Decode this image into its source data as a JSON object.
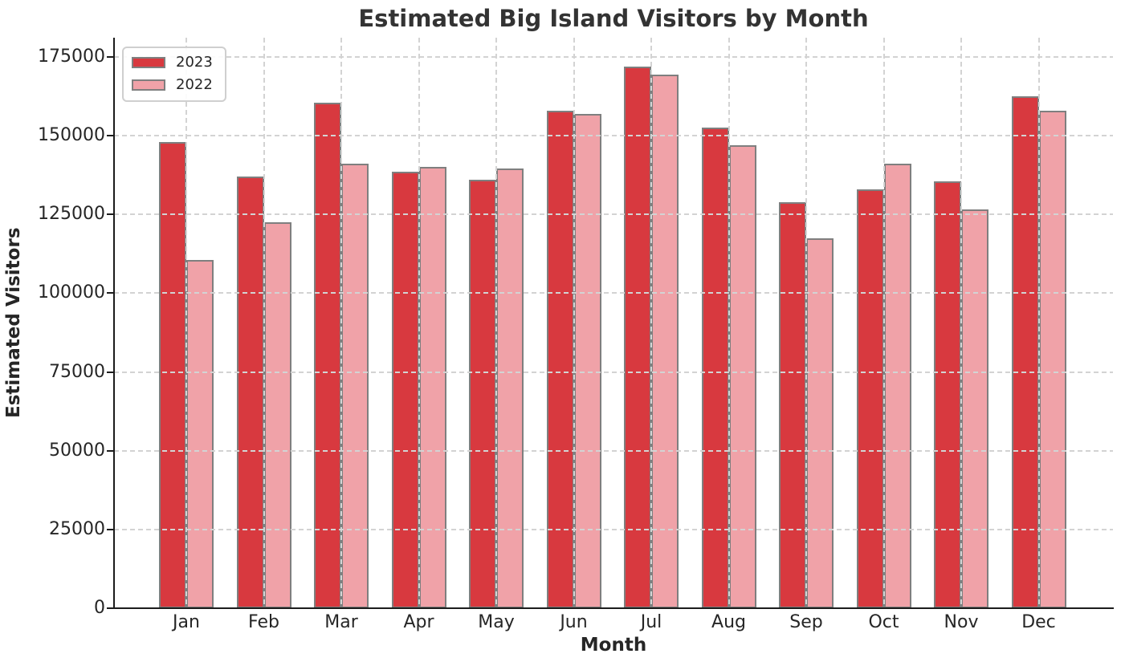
{
  "chart_data": {
    "type": "bar",
    "title": "Estimated Big Island Visitors by Month",
    "xlabel": "Month",
    "ylabel": "Estimated Visitors",
    "categories": [
      "Jan",
      "Feb",
      "Mar",
      "Apr",
      "May",
      "Jun",
      "Jul",
      "Aug",
      "Sep",
      "Oct",
      "Nov",
      "Dec"
    ],
    "series": [
      {
        "name": "2023",
        "color": "#d8393f",
        "values": [
          148000,
          137000,
          160500,
          138500,
          136000,
          158000,
          172000,
          152500,
          129000,
          133000,
          135500,
          162500
        ]
      },
      {
        "name": "2022",
        "color": "#f0a2a8",
        "values": [
          110500,
          122500,
          141000,
          140000,
          139500,
          157000,
          169500,
          147000,
          117500,
          141000,
          126500,
          158000
        ]
      }
    ],
    "yticks": [
      0,
      25000,
      50000,
      75000,
      100000,
      125000,
      150000,
      175000
    ],
    "ylim": [
      0,
      181000
    ],
    "grid": true,
    "grid_style": "dashed",
    "grid_over_bars": true,
    "legend_position": "upper left",
    "colors": {
      "bar_edge": "#7f7f7f",
      "grid": "#d3d3d3",
      "axis": "#1c1c1c",
      "text": "#262626",
      "title": "#333333",
      "legend_border": "#cfcfcf",
      "background": "#ffffff"
    }
  }
}
